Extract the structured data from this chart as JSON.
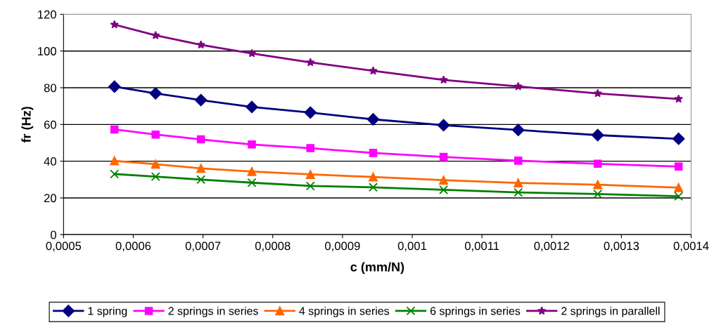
{
  "chart_data": {
    "type": "line",
    "xlabel": "c (mm/N)",
    "ylabel": "fr (Hz)",
    "x": [
      0.000573,
      0.000632,
      0.000697,
      0.00077,
      0.000854,
      0.000944,
      0.001045,
      0.001152,
      0.001266,
      0.001382
    ],
    "series": [
      {
        "name": "1 spring",
        "color": "#000080",
        "marker": "diamond",
        "values": [
          80.6,
          76.9,
          73.3,
          69.5,
          66.5,
          62.8,
          59.6,
          57.0,
          54.2,
          52.2
        ]
      },
      {
        "name": "2 springs in series",
        "color": "#ff00ff",
        "marker": "square",
        "values": [
          57.3,
          54.5,
          51.9,
          49.1,
          47.1,
          44.5,
          42.3,
          40.3,
          38.6,
          37.1
        ]
      },
      {
        "name": "4 springs in series",
        "color": "#ff6600",
        "marker": "triangle",
        "values": [
          40.2,
          38.4,
          36.1,
          34.4,
          32.8,
          31.4,
          29.7,
          28.2,
          27.2,
          25.6
        ]
      },
      {
        "name": "6 springs in series",
        "color": "#008000",
        "marker": "cross",
        "values": [
          33.0,
          31.6,
          30.0,
          28.3,
          26.5,
          25.8,
          24.4,
          23.0,
          22.1,
          20.9
        ]
      },
      {
        "name": "2 springs in parallell",
        "color": "#800080",
        "marker": "star",
        "values": [
          114.4,
          108.5,
          103.4,
          98.7,
          93.8,
          89.2,
          84.3,
          80.7,
          76.9,
          73.9
        ]
      }
    ],
    "xlim": [
      0.0005,
      0.0014
    ],
    "xticks": [
      {
        "value": 0.0005,
        "label": "0,0005"
      },
      {
        "value": 0.0006,
        "label": "0,0006"
      },
      {
        "value": 0.0007,
        "label": "0,0007"
      },
      {
        "value": 0.0008,
        "label": "0,0008"
      },
      {
        "value": 0.0009,
        "label": "0,0009"
      },
      {
        "value": 0.001,
        "label": "0,001"
      },
      {
        "value": 0.0011,
        "label": "0,0011"
      },
      {
        "value": 0.0012,
        "label": "0,0012"
      },
      {
        "value": 0.0013,
        "label": "0,0013"
      },
      {
        "value": 0.0014,
        "label": "0,0014"
      }
    ],
    "ylim": [
      0,
      120
    ],
    "yticks": [
      0,
      20,
      40,
      60,
      80,
      100,
      120
    ],
    "grid": "y",
    "legend": "bottom",
    "line_style": "solid"
  }
}
